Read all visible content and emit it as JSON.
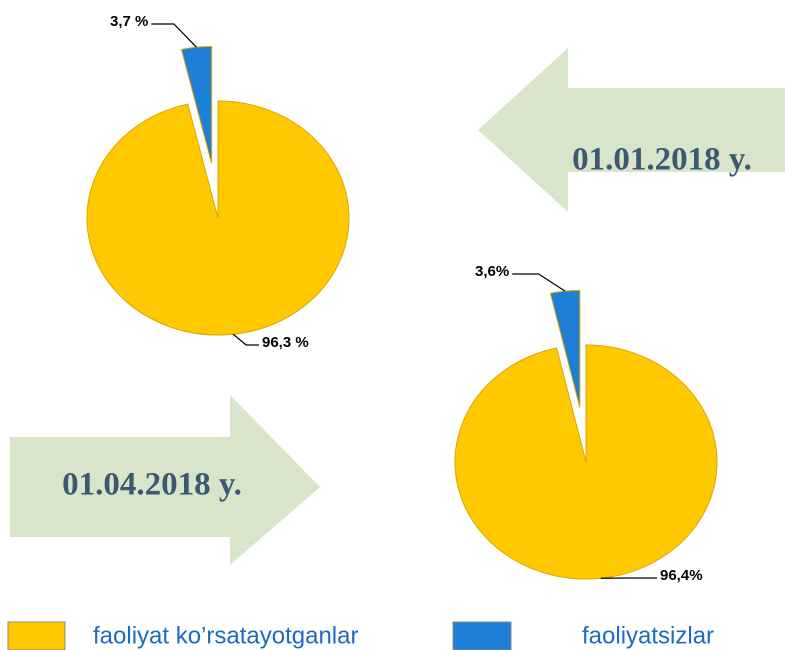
{
  "chart_data": [
    {
      "type": "pie",
      "title": "01.01.2018 y.",
      "categories": [
        "faoliyat ko’rsatayotganlar",
        "faoliyatsizlar"
      ],
      "values": [
        96.3,
        3.7
      ],
      "value_labels": [
        "96,3 %",
        "3,7 %"
      ],
      "colors": [
        "#ffc800",
        "#1e7fd6"
      ]
    },
    {
      "type": "pie",
      "title": "01.04.2018 y.",
      "categories": [
        "faoliyat ko’rsatayotganlar",
        "faoliyatsizlar"
      ],
      "values": [
        96.4,
        3.6
      ],
      "value_labels": [
        "96,4%",
        "3,6%"
      ],
      "colors": [
        "#ffc800",
        "#1e7fd6"
      ]
    }
  ]
}
